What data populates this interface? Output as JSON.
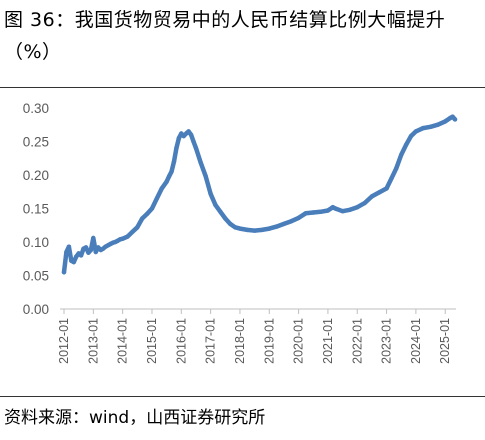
{
  "figure": {
    "title": "图 36：我国货物贸易中的人民币结算比例大幅提升（%）",
    "source": "资料来源：wind，山西证券研究所"
  },
  "chart_data": {
    "type": "line",
    "title": "",
    "xlabel": "",
    "ylabel": "",
    "ylim": [
      0.0,
      0.3
    ],
    "yticks": [
      "0.00",
      "0.05",
      "0.10",
      "0.15",
      "0.20",
      "0.25",
      "0.30"
    ],
    "xticks": [
      "2012-01",
      "2013-01",
      "2014-01",
      "2015-01",
      "2016-01",
      "2017-01",
      "2018-01",
      "2019-01",
      "2020-01",
      "2021-01",
      "2022-01",
      "2023-01",
      "2024-01",
      "2025-01"
    ],
    "grid": false,
    "legend": "none",
    "color": "#4a7ebb",
    "series": [
      {
        "x": [
          "2012-01",
          "2012-02",
          "2012-03",
          "2012-04",
          "2012-05",
          "2012-06",
          "2012-07",
          "2012-08",
          "2012-09",
          "2012-10",
          "2012-11",
          "2012-12",
          "2013-01",
          "2013-02",
          "2013-03",
          "2013-04",
          "2013-05",
          "2013-06",
          "2013-07",
          "2013-08",
          "2013-09",
          "2013-10",
          "2013-11",
          "2013-12",
          "2014-01",
          "2014-03",
          "2014-05",
          "2014-07",
          "2014-09",
          "2014-11",
          "2015-01",
          "2015-03",
          "2015-05",
          "2015-07",
          "2015-08",
          "2015-09",
          "2015-10",
          "2015-11",
          "2015-12",
          "2016-01",
          "2016-02",
          "2016-03",
          "2016-04",
          "2016-05",
          "2016-06",
          "2016-07",
          "2016-09",
          "2016-11",
          "2017-01",
          "2017-03",
          "2017-05",
          "2017-07",
          "2017-09",
          "2017-11",
          "2018-01",
          "2018-04",
          "2018-07",
          "2018-10",
          "2019-01",
          "2019-04",
          "2019-07",
          "2019-10",
          "2020-01",
          "2020-04",
          "2020-07",
          "2020-10",
          "2021-01",
          "2021-03",
          "2021-04",
          "2021-07",
          "2021-10",
          "2022-01",
          "2022-04",
          "2022-07",
          "2022-10",
          "2023-01",
          "2023-03",
          "2023-05",
          "2023-07",
          "2023-09",
          "2023-11",
          "2024-01",
          "2024-04",
          "2024-07",
          "2024-10",
          "2025-01",
          "2025-03",
          "2025-04",
          "2025-05"
        ],
        "values": [
          0.055,
          0.085,
          0.093,
          0.072,
          0.07,
          0.078,
          0.083,
          0.08,
          0.09,
          0.092,
          0.084,
          0.088,
          0.106,
          0.085,
          0.092,
          0.088,
          0.09,
          0.093,
          0.095,
          0.097,
          0.099,
          0.1,
          0.102,
          0.104,
          0.105,
          0.108,
          0.115,
          0.122,
          0.135,
          0.142,
          0.15,
          0.165,
          0.18,
          0.19,
          0.198,
          0.205,
          0.22,
          0.24,
          0.255,
          0.262,
          0.258,
          0.262,
          0.265,
          0.26,
          0.25,
          0.24,
          0.218,
          0.198,
          0.172,
          0.155,
          0.145,
          0.135,
          0.127,
          0.122,
          0.12,
          0.118,
          0.117,
          0.118,
          0.12,
          0.123,
          0.127,
          0.131,
          0.136,
          0.143,
          0.144,
          0.145,
          0.147,
          0.152,
          0.15,
          0.146,
          0.148,
          0.152,
          0.158,
          0.168,
          0.174,
          0.18,
          0.195,
          0.21,
          0.23,
          0.245,
          0.258,
          0.265,
          0.27,
          0.272,
          0.275,
          0.28,
          0.285,
          0.287,
          0.283
        ]
      }
    ]
  }
}
